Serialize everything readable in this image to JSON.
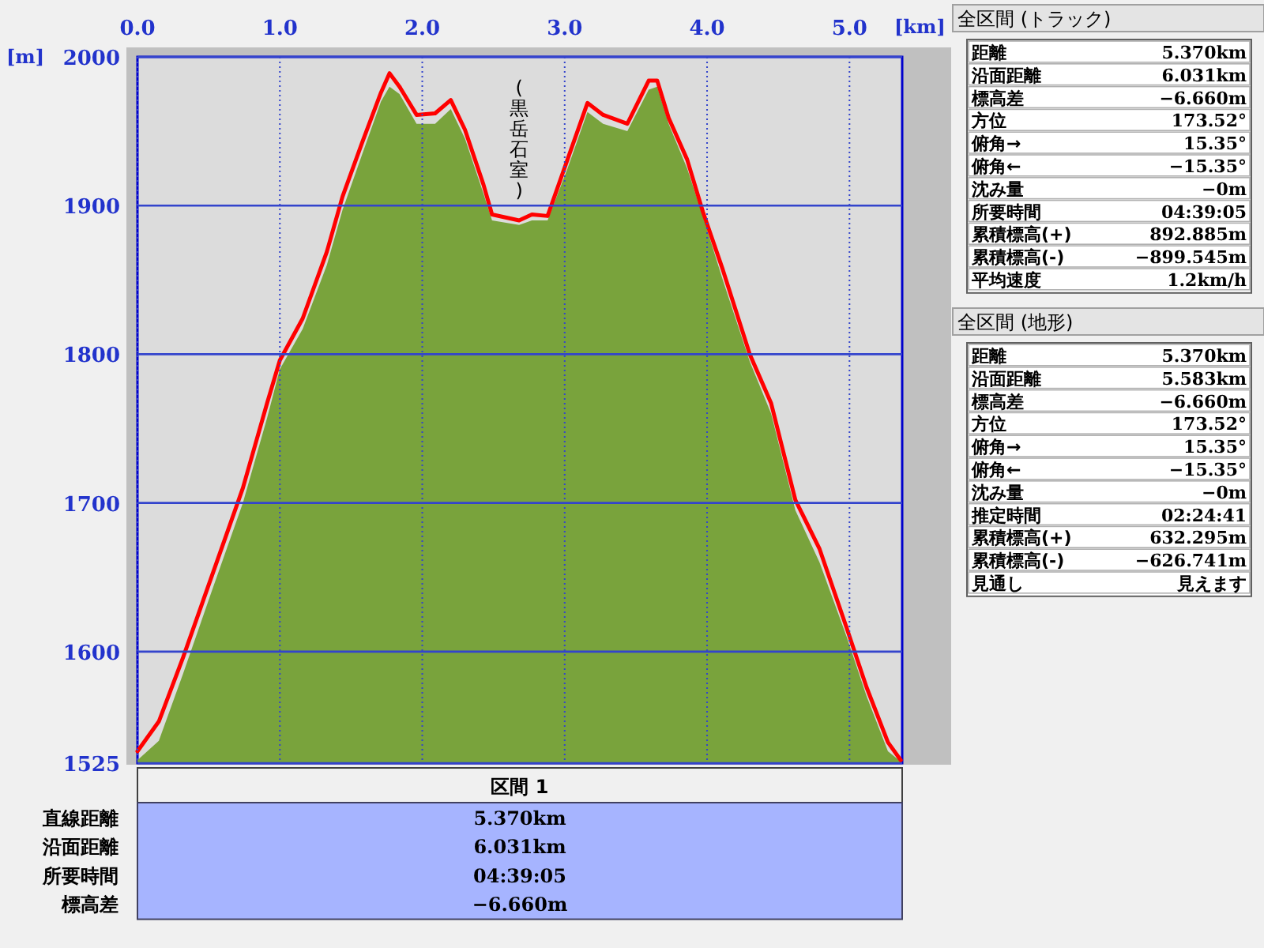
{
  "chart_data": [
    {
      "type": "area",
      "xlabel": "[km]",
      "ylabel": "[m]",
      "xlim": [
        0,
        5.37
      ],
      "ylim": [
        1525,
        2000
      ],
      "xticks": [
        {
          "value": 0,
          "label": "0.0"
        },
        {
          "value": 1,
          "label": "1.0"
        },
        {
          "value": 2,
          "label": "2.0"
        },
        {
          "value": 3,
          "label": "3.0"
        },
        {
          "value": 4,
          "label": "4.0"
        },
        {
          "value": 5,
          "label": "5.0"
        }
      ],
      "yticks": [
        1525,
        1600,
        1700,
        1800,
        1900,
        2000
      ],
      "grid": true,
      "annotations": [
        {
          "text": "(黒岳石室)",
          "x": 2.68,
          "y": 1890
        }
      ],
      "series": [
        {
          "type": "area",
          "color": "#79a33c",
          "x": [
            0,
            0.15,
            0.32,
            0.53,
            0.74,
            0.91,
            1.0,
            1.16,
            1.33,
            1.44,
            1.58,
            1.71,
            1.77,
            1.84,
            1.96,
            2.09,
            2.2,
            2.3,
            2.43,
            2.49,
            2.68,
            2.77,
            2.88,
            3.02,
            3.16,
            3.27,
            3.44,
            3.59,
            3.65,
            3.73,
            3.86,
            3.97,
            4.11,
            4.3,
            4.45,
            4.62,
            4.79,
            4.98,
            5.12,
            5.27,
            5.36
          ],
          "values": [
            1527,
            1540,
            1585,
            1643,
            1700,
            1757,
            1790,
            1817,
            1860,
            1897,
            1935,
            1970,
            1980,
            1975,
            1955,
            1955,
            1965,
            1945,
            1908,
            1890,
            1887,
            1890,
            1890,
            1925,
            1963,
            1955,
            1950,
            1978,
            1980,
            1955,
            1925,
            1893,
            1850,
            1795,
            1760,
            1695,
            1660,
            1610,
            1570,
            1533,
            1526
          ]
        },
        {
          "type": "line",
          "color": "#ff0000",
          "x": [
            0,
            0.15,
            0.32,
            0.53,
            0.74,
            0.91,
            1.0,
            1.16,
            1.33,
            1.44,
            1.58,
            1.71,
            1.77,
            1.84,
            1.96,
            2.09,
            2.2,
            2.3,
            2.43,
            2.49,
            2.68,
            2.77,
            2.88,
            3.02,
            3.16,
            3.27,
            3.44,
            3.59,
            3.65,
            3.73,
            3.86,
            3.97,
            4.11,
            4.3,
            4.45,
            4.62,
            4.79,
            4.98,
            5.12,
            5.27,
            5.36
          ],
          "values": [
            1533,
            1553,
            1596,
            1653,
            1710,
            1767,
            1796,
            1824,
            1869,
            1906,
            1943,
            1976,
            1989,
            1980,
            1961,
            1962,
            1971,
            1951,
            1914,
            1894,
            1890,
            1894,
            1893,
            1931,
            1969,
            1961,
            1955,
            1984,
            1984,
            1959,
            1931,
            1896,
            1857,
            1800,
            1767,
            1702,
            1669,
            1616,
            1576,
            1539,
            1527
          ]
        }
      ]
    },
    {
      "type": "other",
      "title": "全区間 (トラック)",
      "annotations": [
        "距離",
        "5.370km",
        "沿面距離",
        "6.031km",
        "標高差",
        "−6.660m",
        "方位",
        "173.52°",
        "俯角→",
        "15.35°",
        "俯角←",
        "−15.35°",
        "沈み量",
        "−0m",
        "所要時間",
        "04:39:05",
        "累積標高(+)",
        "892.885m",
        "累積標高(-)",
        "−899.545m",
        "平均速度",
        "1.2km/h"
      ]
    },
    {
      "type": "other",
      "title": "全区間 (地形)",
      "annotations": [
        "距離",
        "5.370km",
        "沿面距離",
        "5.583km",
        "標高差",
        "−6.660m",
        "方位",
        "173.52°",
        "俯角→",
        "15.35°",
        "俯角←",
        "−15.35°",
        "沈み量",
        "−0m",
        "推定時間",
        "02:24:41",
        "累積標高(+)",
        "632.295m",
        "累積標高(-)",
        "−626.741m",
        "見通し",
        "見えます"
      ]
    },
    {
      "type": "other",
      "title": "区間 1",
      "annotations": [
        "直線距離",
        "5.370km",
        "沿面距離",
        "6.031km",
        "所要時間",
        "04:39:05",
        "標高差",
        "−6.660m"
      ]
    }
  ]
}
